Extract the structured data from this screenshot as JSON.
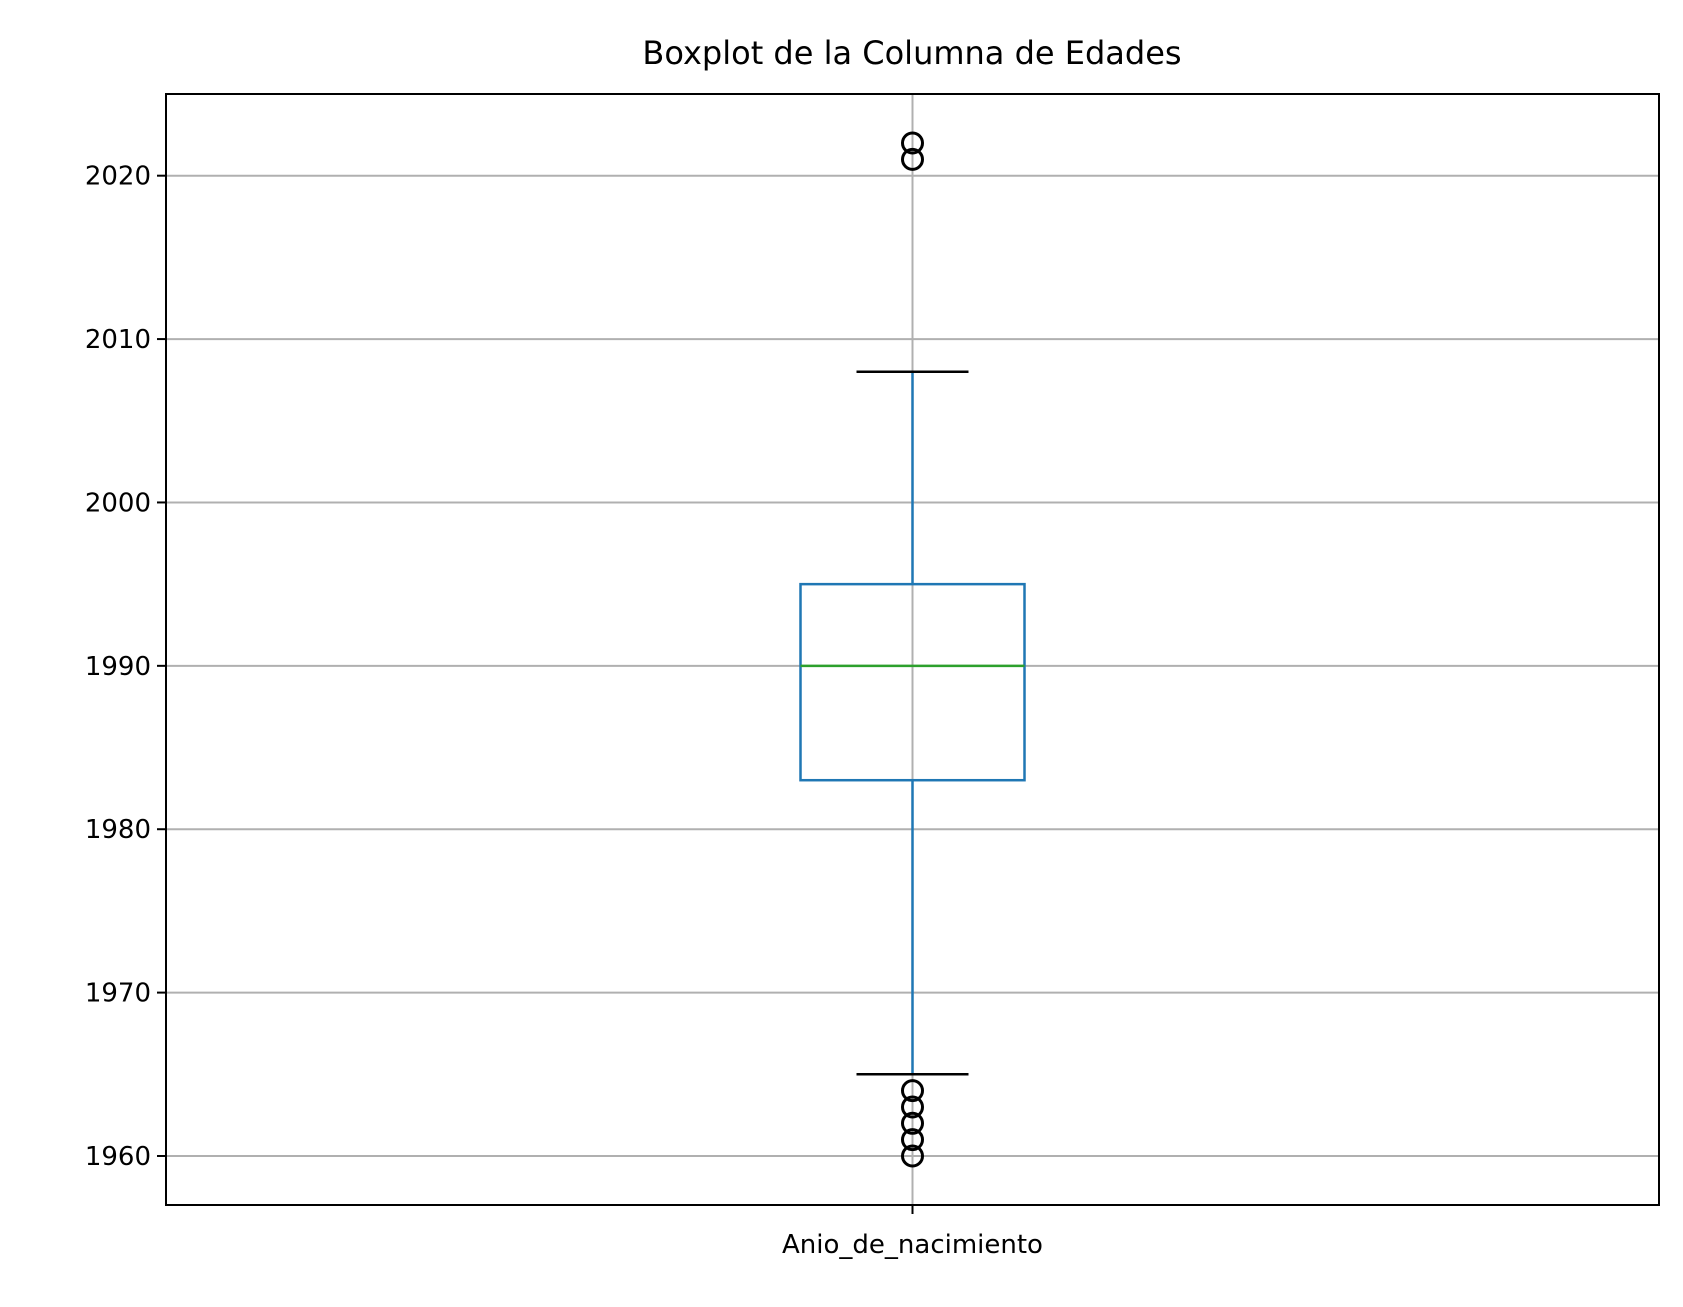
{
  "chart_data": {
    "type": "box",
    "title": "Boxplot de la Columna de Edades",
    "xlabel": "",
    "ylabel": "",
    "categories": [
      "Anio_de_nacimiento"
    ],
    "ylim": [
      1957,
      2025
    ],
    "yticks": [
      1960,
      1970,
      1980,
      1990,
      2000,
      2010,
      2020
    ],
    "grid": true,
    "box": {
      "whisker_low": 1965,
      "q1": 1983,
      "median": 1990,
      "q3": 1995,
      "whisker_high": 2008
    },
    "outliers": [
      1960,
      1961,
      1962,
      1963,
      1964,
      2021,
      2022
    ],
    "colors": {
      "box": "#1f77b4",
      "median": "#2ca02c",
      "whisker_cap": "#000000",
      "outlier": "#000000",
      "grid": "#b0b0b0"
    }
  }
}
